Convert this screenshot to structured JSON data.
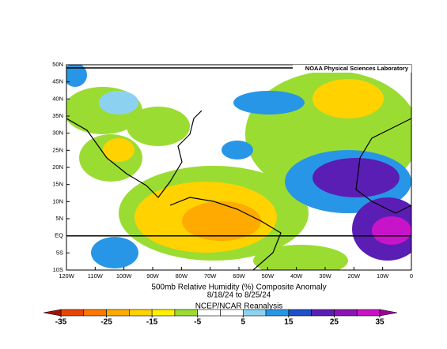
{
  "header": {
    "lab": "NOAA Physical Sciences Laboratory"
  },
  "axes": {
    "lat_labels": [
      "50N",
      "45N",
      "40N",
      "35N",
      "30N",
      "25N",
      "20N",
      "15N",
      "10N",
      "5N",
      "EQ",
      "5S",
      "10S"
    ],
    "lon_labels": [
      "120W",
      "110W",
      "100W",
      "90W",
      "80W",
      "70W",
      "60W",
      "50W",
      "40W",
      "30W",
      "20W",
      "10W",
      "0"
    ]
  },
  "caption": {
    "title": "500mb Relative Humidity (%) Composite Anomaly",
    "dates": "8/18/24  to 8/25/24",
    "source": "NCEP/NCAR Reanalysis"
  },
  "colorbar": {
    "levels": [
      -35,
      -30,
      -25,
      -20,
      -15,
      -10,
      -5,
      0,
      5,
      10,
      15,
      20,
      25,
      30,
      35
    ],
    "colors": [
      "#a01400",
      "#e64600",
      "#ff7800",
      "#ffaa00",
      "#ffd200",
      "#fff000",
      "#9bdc32",
      "#ffffff",
      "#ffffff",
      "#8cd2f0",
      "#2896e6",
      "#1e50c8",
      "#5a1eb4",
      "#8c14b4",
      "#c814c8",
      "#a0009a"
    ],
    "ticks": [
      -35,
      -25,
      -15,
      -5,
      5,
      15,
      25,
      35
    ]
  }
}
